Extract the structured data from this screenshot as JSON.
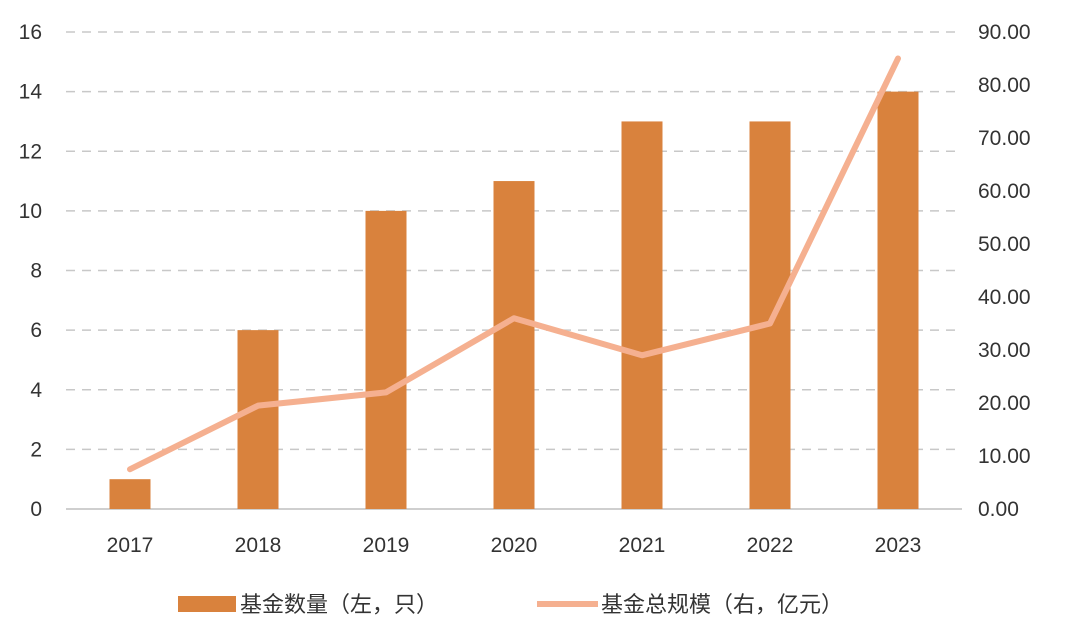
{
  "chart_data": {
    "type": "bar",
    "categories": [
      "2017",
      "2018",
      "2019",
      "2020",
      "2021",
      "2022",
      "2023"
    ],
    "series": [
      {
        "name": "基金数量（左，只）",
        "type": "bar",
        "axis": "left",
        "values": [
          1,
          6,
          10,
          11,
          13,
          13,
          14
        ]
      },
      {
        "name": "基金总规模（右，亿元）",
        "type": "line",
        "axis": "right",
        "values": [
          7.5,
          19.5,
          22,
          36,
          29,
          35,
          85
        ]
      }
    ],
    "left_axis": {
      "ylim": [
        0,
        16
      ],
      "ticks": [
        "0",
        "2",
        "4",
        "6",
        "8",
        "10",
        "12",
        "14",
        "16"
      ]
    },
    "right_axis": {
      "ylim": [
        0,
        90
      ],
      "ticks": [
        "0.00",
        "10.00",
        "20.00",
        "30.00",
        "40.00",
        "50.00",
        "60.00",
        "70.00",
        "80.00",
        "90.00"
      ]
    },
    "grid": true,
    "legend_position": "bottom",
    "colors": {
      "bar": "#D9823D",
      "line": "#F5B090",
      "grid": "#C8C8C8",
      "text": "#333333"
    }
  }
}
